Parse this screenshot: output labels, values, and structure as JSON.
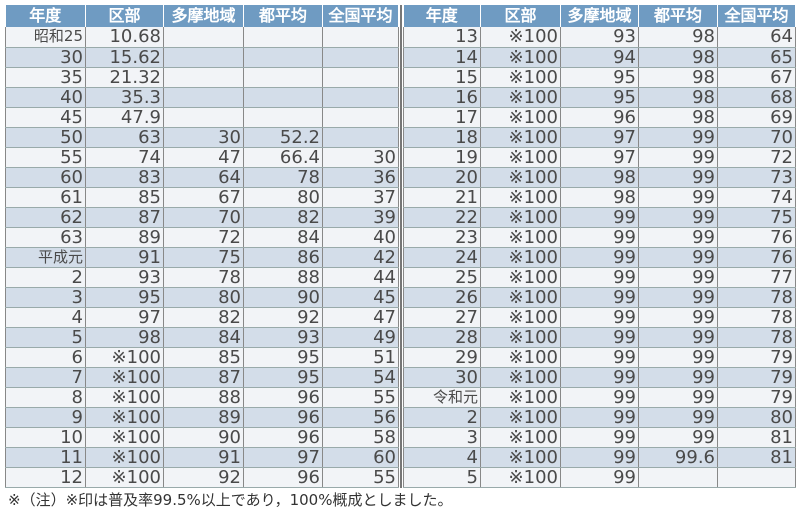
{
  "headers": [
    "年度",
    "区部",
    "多摩地域",
    "都平均",
    "全国平均"
  ],
  "left_rows": [
    [
      "昭和25",
      "10.68",
      "",
      "",
      ""
    ],
    [
      "30",
      "15.62",
      "",
      "",
      ""
    ],
    [
      "35",
      "21.32",
      "",
      "",
      ""
    ],
    [
      "40",
      "35.3",
      "",
      "",
      ""
    ],
    [
      "45",
      "47.9",
      "",
      "",
      ""
    ],
    [
      "50",
      "63",
      "30",
      "52.2",
      ""
    ],
    [
      "55",
      "74",
      "47",
      "66.4",
      "30"
    ],
    [
      "60",
      "83",
      "64",
      "78",
      "36"
    ],
    [
      "61",
      "85",
      "67",
      "80",
      "37"
    ],
    [
      "62",
      "87",
      "70",
      "82",
      "39"
    ],
    [
      "63",
      "89",
      "72",
      "84",
      "40"
    ],
    [
      "平成元",
      "91",
      "75",
      "86",
      "42"
    ],
    [
      "2",
      "93",
      "78",
      "88",
      "44"
    ],
    [
      "3",
      "95",
      "80",
      "90",
      "45"
    ],
    [
      "4",
      "97",
      "82",
      "92",
      "47"
    ],
    [
      "5",
      "98",
      "84",
      "93",
      "49"
    ],
    [
      "6",
      "※100",
      "85",
      "95",
      "51"
    ],
    [
      "7",
      "※100",
      "87",
      "95",
      "54"
    ],
    [
      "8",
      "※100",
      "88",
      "96",
      "55"
    ],
    [
      "9",
      "※100",
      "89",
      "96",
      "56"
    ],
    [
      "10",
      "※100",
      "90",
      "96",
      "58"
    ],
    [
      "11",
      "※100",
      "91",
      "97",
      "60"
    ],
    [
      "12",
      "※100",
      "92",
      "96",
      "55"
    ]
  ],
  "right_rows": [
    [
      "13",
      "※100",
      "93",
      "98",
      "64"
    ],
    [
      "14",
      "※100",
      "94",
      "98",
      "65"
    ],
    [
      "15",
      "※100",
      "95",
      "98",
      "67"
    ],
    [
      "16",
      "※100",
      "95",
      "98",
      "68"
    ],
    [
      "17",
      "※100",
      "96",
      "98",
      "69"
    ],
    [
      "18",
      "※100",
      "97",
      "99",
      "70"
    ],
    [
      "19",
      "※100",
      "97",
      "99",
      "72"
    ],
    [
      "20",
      "※100",
      "98",
      "99",
      "73"
    ],
    [
      "21",
      "※100",
      "98",
      "99",
      "74"
    ],
    [
      "22",
      "※100",
      "99",
      "99",
      "75"
    ],
    [
      "23",
      "※100",
      "99",
      "99",
      "76"
    ],
    [
      "24",
      "※100",
      "99",
      "99",
      "76"
    ],
    [
      "25",
      "※100",
      "99",
      "99",
      "77"
    ],
    [
      "26",
      "※100",
      "99",
      "99",
      "78"
    ],
    [
      "27",
      "※100",
      "99",
      "99",
      "78"
    ],
    [
      "28",
      "※100",
      "99",
      "99",
      "78"
    ],
    [
      "29",
      "※100",
      "99",
      "99",
      "79"
    ],
    [
      "30",
      "※100",
      "99",
      "99",
      "79"
    ],
    [
      "令和元",
      "※100",
      "99",
      "99",
      "79"
    ],
    [
      "2",
      "※100",
      "99",
      "99",
      "80"
    ],
    [
      "3",
      "※100",
      "99",
      "99",
      "81"
    ],
    [
      "4",
      "※100",
      "99",
      "99.6",
      "81"
    ],
    [
      "5",
      "※100",
      "99",
      "",
      ""
    ]
  ],
  "note": "※（注）※印は普及率99.5%以上であり，100%概成としました。",
  "colors": {
    "header": "#6f9bc2",
    "row_light": "#f2f4f7",
    "row_dark": "#d3dde9"
  }
}
